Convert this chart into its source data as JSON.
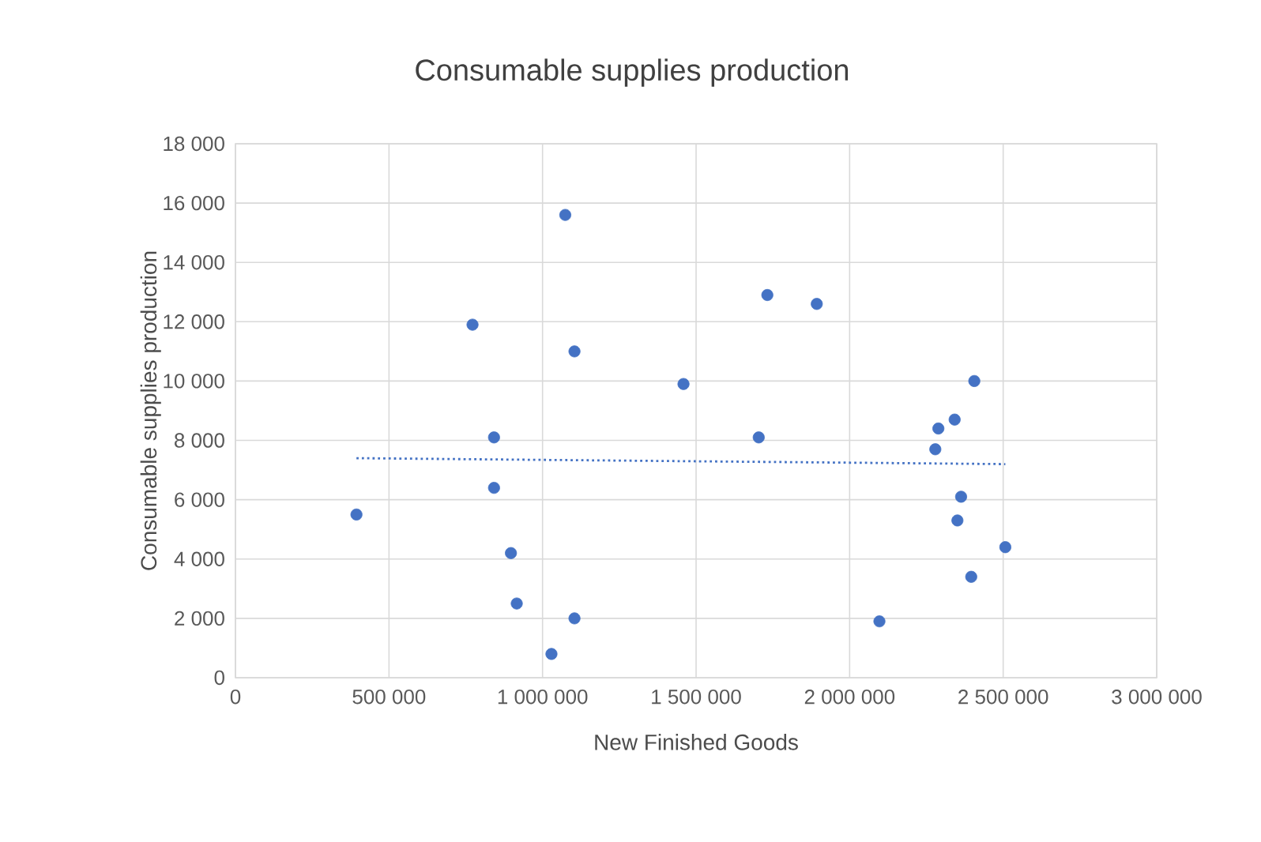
{
  "chart_data": {
    "type": "scatter",
    "title": "Consumable supplies production",
    "xlabel": "New Finished Goods",
    "ylabel": "Consumable supplies production",
    "xlim": [
      0,
      3000000
    ],
    "ylim": [
      0,
      18000
    ],
    "xticks": [
      0,
      {
        "value": 500000,
        "label": "500 000"
      },
      {
        "value": 1000000,
        "label": "1 000 000"
      },
      {
        "value": 1500000,
        "label": "1 500 000"
      },
      {
        "value": 2000000,
        "label": "2 000 000"
      },
      {
        "value": 2500000,
        "label": "2 500 000"
      },
      {
        "value": 3000000,
        "label": "3 000 000"
      }
    ],
    "yticks": [
      0,
      {
        "value": 2000,
        "label": "2 000"
      },
      {
        "value": 4000,
        "label": "4 000"
      },
      {
        "value": 6000,
        "label": "6 000"
      },
      {
        "value": 8000,
        "label": "8 000"
      },
      {
        "value": 10000,
        "label": "10 000"
      },
      {
        "value": 12000,
        "label": "12 000"
      },
      {
        "value": 14000,
        "label": "14 000"
      },
      {
        "value": 16000,
        "label": "16 000"
      },
      {
        "value": 18000,
        "label": "18 000"
      }
    ],
    "grid": true,
    "series": [
      {
        "marker": "circle",
        "color": "#4472c4",
        "x": [
          1074000,
          772000,
          1104000,
          1459000,
          842000,
          842000,
          394000,
          897000,
          916000,
          1104000,
          1029000,
          1732000,
          1893000,
          2406000,
          2342000,
          2289000,
          2279000,
          1704000,
          2363000,
          2351000,
          2507000,
          2396000,
          2097000
        ],
        "values": [
          15600,
          11900,
          11000,
          9900,
          8100,
          6400,
          5500,
          4200,
          2500,
          2000,
          800,
          12900,
          12600,
          10000,
          8700,
          8400,
          7700,
          8100,
          6100,
          5300,
          4400,
          3400,
          1900
        ]
      },
      {
        "type": "line",
        "marker": "none",
        "color": "#4472c4",
        "line_style": "dotted",
        "x": [
          394000,
          2507000
        ],
        "values": [
          7400,
          7200
        ]
      }
    ]
  }
}
